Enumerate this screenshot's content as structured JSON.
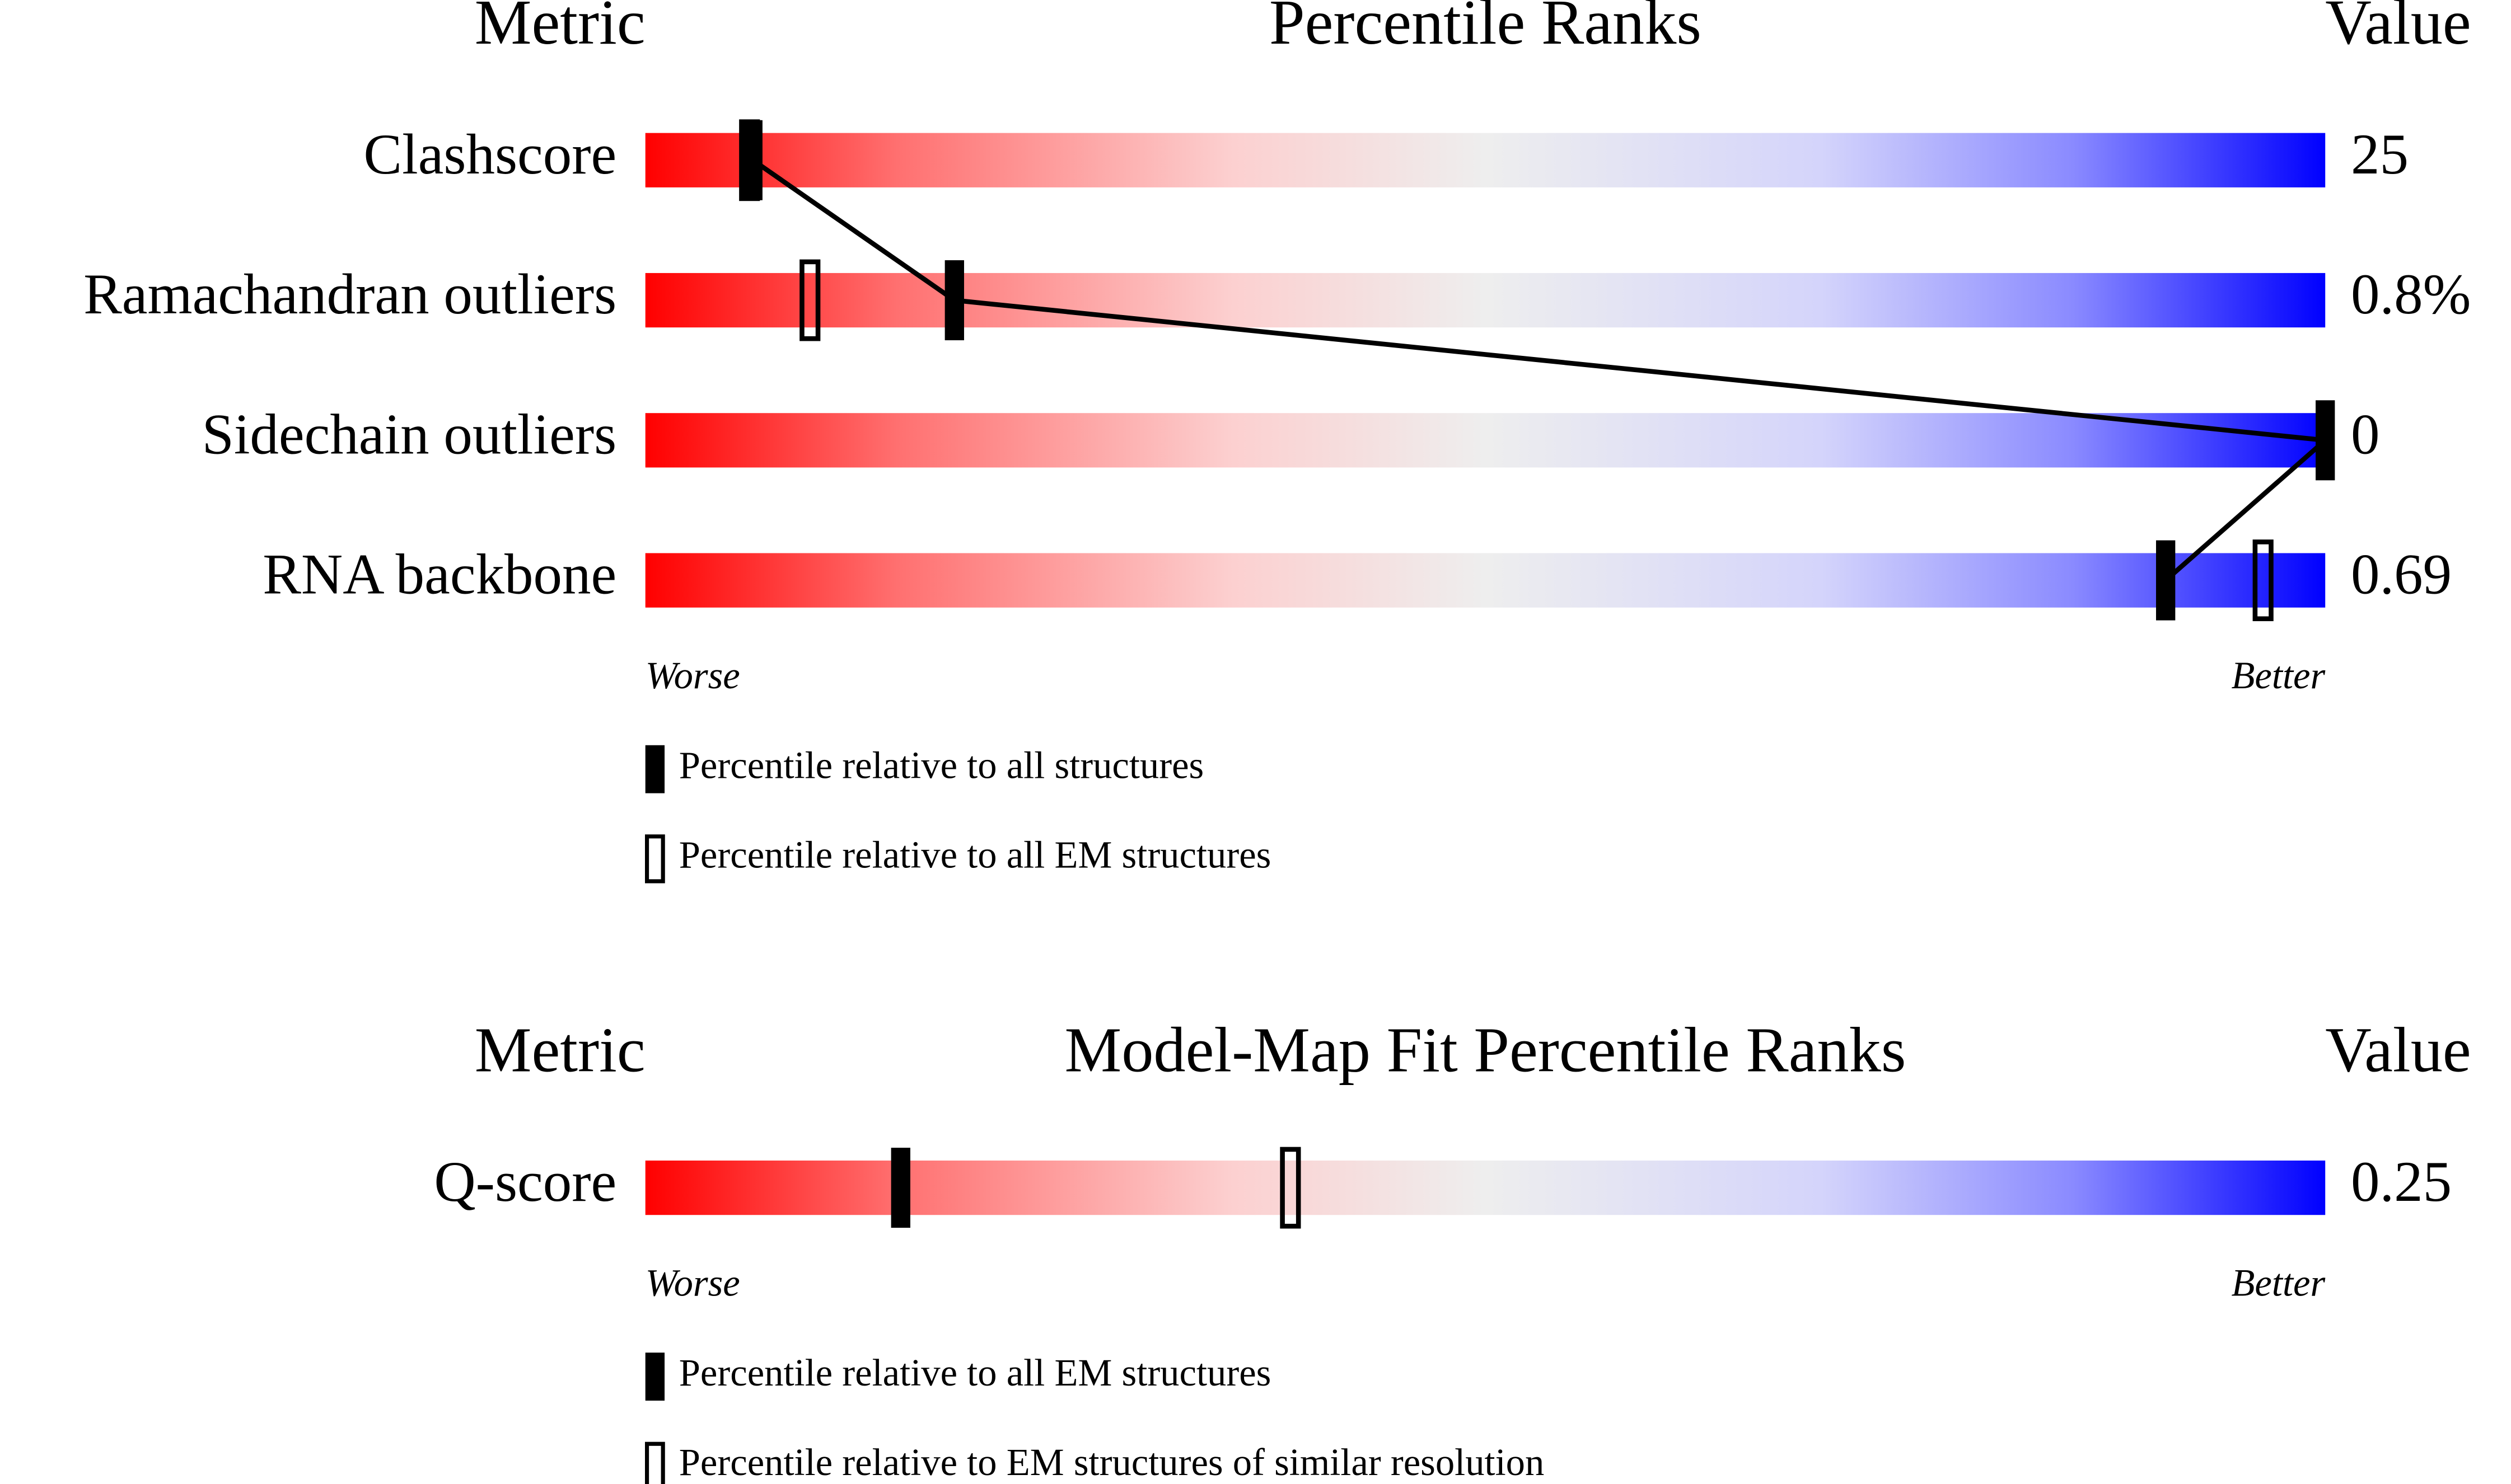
{
  "chart_data": [
    {
      "type": "percentile-slider",
      "title": "Percentile Ranks",
      "metric_header": "Metric",
      "value_header": "Value",
      "categories": [
        "Clashscore",
        "Ramachandran outliers",
        "Sidechain outliers",
        "RNA backbone"
      ],
      "metric_values": [
        "25",
        "0.8%",
        "0",
        "0.69"
      ],
      "xlim": [
        0,
        100
      ],
      "worse_label": "Worse",
      "better_label": "Better",
      "connect": true,
      "series": [
        {
          "name": "Percentile relative to all structures",
          "color": "#000000",
          "style": "filled",
          "values": [
            6.4,
            18.4,
            100,
            90.5
          ]
        },
        {
          "name": "Percentile relative to all EM structures",
          "color": "#000000",
          "style": "hollow",
          "values": [
            6.2,
            9.8,
            null,
            96.3
          ]
        }
      ]
    },
    {
      "type": "percentile-slider",
      "title": "Model-Map Fit Percentile Ranks",
      "metric_header": "Metric",
      "value_header": "Value",
      "categories": [
        "Q-score"
      ],
      "metric_values": [
        "0.25"
      ],
      "xlim": [
        0,
        100
      ],
      "worse_label": "Worse",
      "better_label": "Better",
      "connect": false,
      "series": [
        {
          "name": "Percentile relative to all EM structures",
          "color": "#000000",
          "style": "filled",
          "values": [
            15.2
          ]
        },
        {
          "name": "Percentile relative to EM structures of similar resolution",
          "color": "#000000",
          "style": "hollow",
          "values": [
            38.4
          ]
        }
      ]
    }
  ]
}
